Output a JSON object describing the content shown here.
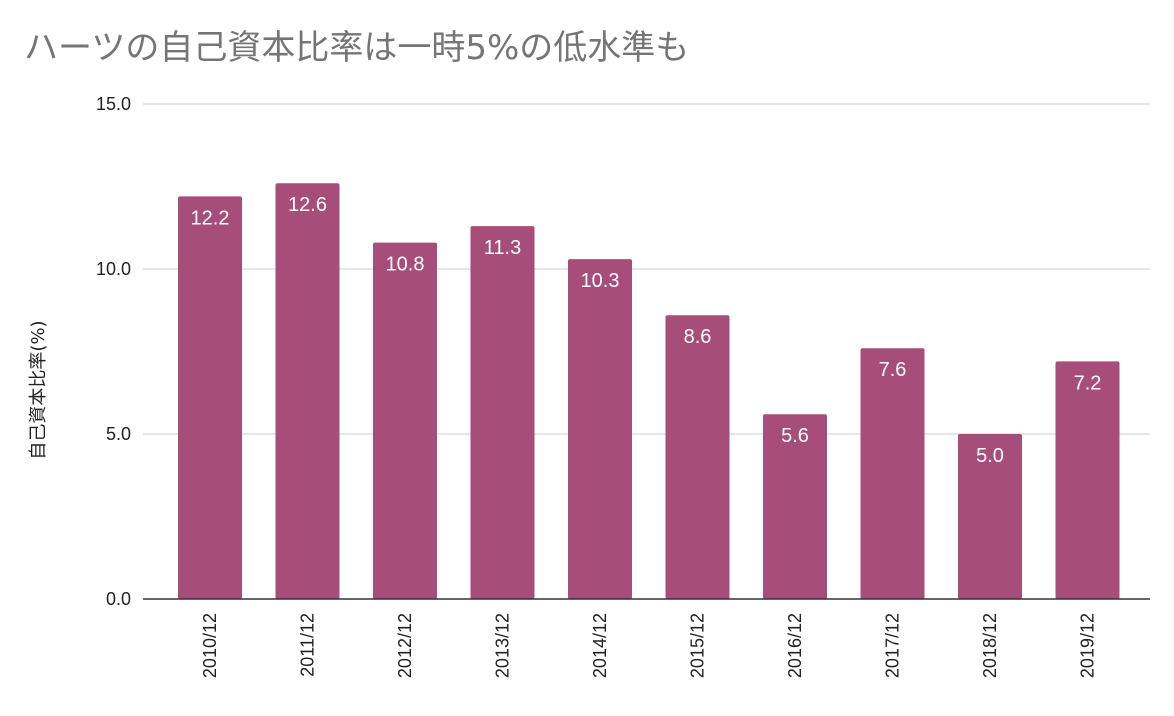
{
  "chart_data": {
    "type": "bar",
    "title": "ハーツの自己資本比率は一時5%の低水準も",
    "ylabel": "自己資本比率(%)",
    "xlabel": "",
    "categories": [
      "2010/12",
      "2011/12",
      "2012/12",
      "2013/12",
      "2014/12",
      "2015/12",
      "2016/12",
      "2017/12",
      "2018/12",
      "2019/12"
    ],
    "values": [
      12.2,
      12.6,
      10.8,
      11.3,
      10.3,
      8.6,
      5.6,
      7.6,
      5.0,
      7.2
    ],
    "data_labels": [
      "12.2",
      "12.6",
      "10.8",
      "11.3",
      "10.3",
      "8.6",
      "5.6",
      "7.6",
      "5.0",
      "7.2"
    ],
    "ylim": [
      0,
      15
    ],
    "yticks": [
      0,
      5,
      10,
      15
    ],
    "ytick_labels": [
      "0.0",
      "5.0",
      "10.0",
      "15.0"
    ],
    "grid": true,
    "legend": "none",
    "colors": {
      "bar": "#a64d79",
      "grid": "#cccccc",
      "axis": "#333333",
      "title": "#757575",
      "label_text": "#ffffff"
    }
  }
}
